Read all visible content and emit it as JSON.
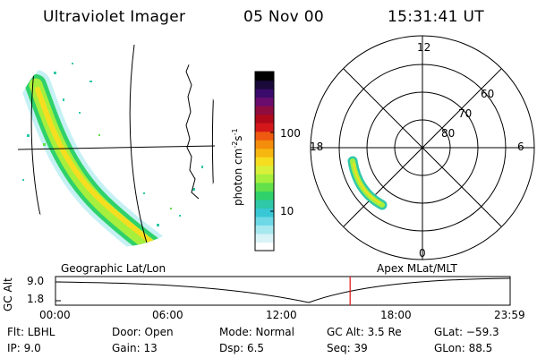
{
  "header": {
    "instrument": "Ultraviolet Imager",
    "date": "05 Nov 00",
    "time": "15:31:41 UT"
  },
  "colorbar": {
    "unit_label": "photon cm-2s-1",
    "ticks": [
      "100",
      "10"
    ],
    "colors": [
      "#000000",
      "#1a0a3a",
      "#3a0b6b",
      "#6a0c6d",
      "#8f0c3f",
      "#b00a1a",
      "#d4181a",
      "#ee5a10",
      "#f38d0b",
      "#f6b711",
      "#f5de20",
      "#d8f03a",
      "#a6ef3d",
      "#63e04a",
      "#2fd16b",
      "#2fc8a8",
      "#38c7d5",
      "#6ed8e6",
      "#a7e8ee",
      "#d8f4f6",
      "#ffffff"
    ]
  },
  "geo_map": {
    "label": "Geographic Lat/Lon"
  },
  "polar_plot": {
    "label": "Apex MLat/MLT",
    "mlt_labels": [
      "12",
      "18",
      "6",
      "0"
    ],
    "lat_labels": [
      "60",
      "70",
      "80"
    ]
  },
  "altitude_plot": {
    "ylabel": "GC Alt",
    "yticks": [
      "9.0",
      "1.8"
    ],
    "xticks": [
      "00:00",
      "06:00",
      "12:00",
      "18:00",
      "23:59"
    ],
    "current_time_fraction": 0.648
  },
  "info": {
    "flt": "Flt: LBHL",
    "ip": "IP:  9.0",
    "door": "Door: Open",
    "gain": "Gain: 13",
    "mode": "Mode: Normal",
    "dsp": "Dsp:      6.5",
    "gcalt": "GC Alt: 3.5 Re",
    "seq": "Seq: 39",
    "glat": "GLat: −59.3",
    "glon": "GLon:  88.5"
  }
}
